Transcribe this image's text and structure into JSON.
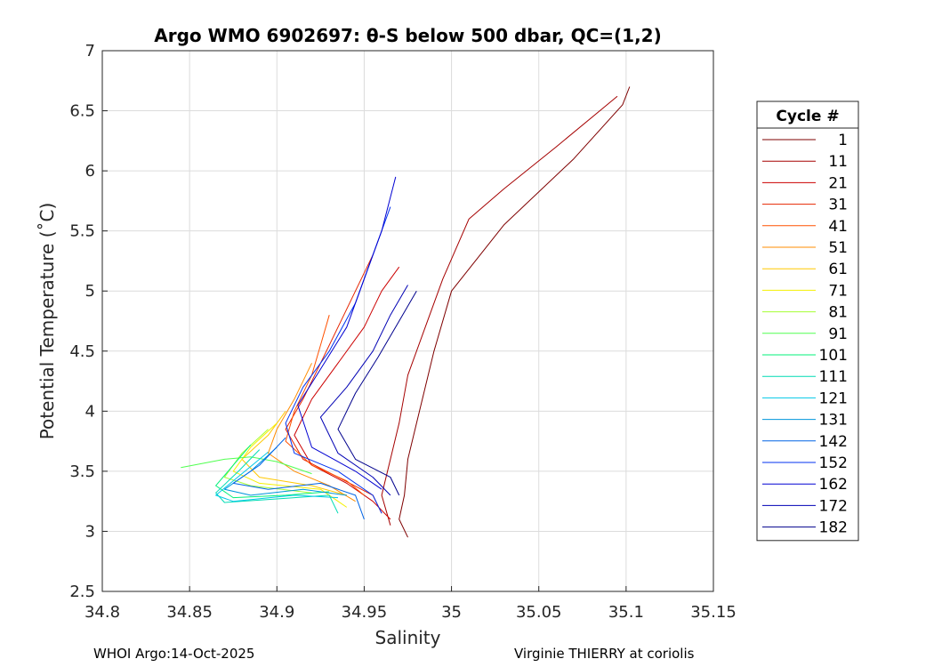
{
  "chart_data": {
    "type": "line",
    "title": "Argo WMO 6902697: θ-S below 500 dbar,  QC=(1,2)",
    "xlabel": "Salinity",
    "ylabel": "Potential Temperature (˚C)",
    "xlim": [
      34.8,
      35.15
    ],
    "ylim": [
      2.5,
      7
    ],
    "xticks": [
      "34.8",
      "34.85",
      "34.9",
      "34.95",
      "35",
      "35.05",
      "35.1",
      "35.15"
    ],
    "yticks": [
      "2.5",
      "3",
      "3.5",
      "4",
      "4.5",
      "5",
      "5.5",
      "6",
      "6.5",
      "7"
    ],
    "grid": true,
    "legend_title": "Cycle #",
    "legend_position": "right-outside",
    "series": [
      {
        "name": "1",
        "color": "#7f0000",
        "points": [
          [
            35.102,
            6.7
          ],
          [
            35.098,
            6.55
          ],
          [
            35.07,
            6.1
          ],
          [
            35.03,
            5.55
          ],
          [
            35.0,
            5.0
          ],
          [
            34.99,
            4.5
          ],
          [
            34.985,
            4.2
          ],
          [
            34.98,
            3.9
          ],
          [
            34.975,
            3.6
          ],
          [
            34.973,
            3.3
          ],
          [
            34.97,
            3.1
          ],
          [
            34.975,
            2.95
          ]
        ]
      },
      {
        "name": "11",
        "color": "#a50000",
        "points": [
          [
            35.095,
            6.62
          ],
          [
            35.06,
            6.2
          ],
          [
            35.03,
            5.85
          ],
          [
            35.01,
            5.6
          ],
          [
            34.995,
            5.1
          ],
          [
            34.985,
            4.7
          ],
          [
            34.975,
            4.3
          ],
          [
            34.97,
            3.9
          ],
          [
            34.965,
            3.6
          ],
          [
            34.96,
            3.3
          ],
          [
            34.965,
            3.05
          ]
        ]
      },
      {
        "name": "21",
        "color": "#cc0000",
        "points": [
          [
            34.97,
            5.2
          ],
          [
            34.96,
            5.0
          ],
          [
            34.95,
            4.7
          ],
          [
            34.935,
            4.4
          ],
          [
            34.92,
            4.1
          ],
          [
            34.91,
            3.8
          ],
          [
            34.92,
            3.55
          ],
          [
            34.94,
            3.4
          ],
          [
            34.955,
            3.25
          ],
          [
            34.965,
            3.1
          ]
        ]
      },
      {
        "name": "31",
        "color": "#e62400",
        "points": [
          [
            34.955,
            5.3
          ],
          [
            34.945,
            5.0
          ],
          [
            34.935,
            4.7
          ],
          [
            34.925,
            4.4
          ],
          [
            34.915,
            4.1
          ],
          [
            34.905,
            3.85
          ],
          [
            34.915,
            3.6
          ],
          [
            34.935,
            3.45
          ],
          [
            34.955,
            3.3
          ],
          [
            34.96,
            3.15
          ]
        ]
      },
      {
        "name": "41",
        "color": "#ff5000",
        "points": [
          [
            34.93,
            4.8
          ],
          [
            34.925,
            4.55
          ],
          [
            34.92,
            4.3
          ],
          [
            34.91,
            4.0
          ],
          [
            34.905,
            3.75
          ],
          [
            34.92,
            3.55
          ],
          [
            34.94,
            3.42
          ],
          [
            34.95,
            3.3
          ]
        ]
      },
      {
        "name": "51",
        "color": "#ff8c00",
        "points": [
          [
            34.92,
            4.4
          ],
          [
            34.91,
            4.1
          ],
          [
            34.9,
            3.85
          ],
          [
            34.895,
            3.65
          ],
          [
            34.91,
            3.5
          ],
          [
            34.93,
            3.38
          ],
          [
            34.945,
            3.25
          ]
        ]
      },
      {
        "name": "61",
        "color": "#ffc800",
        "points": [
          [
            34.905,
            4.0
          ],
          [
            34.895,
            3.8
          ],
          [
            34.88,
            3.6
          ],
          [
            34.89,
            3.45
          ],
          [
            34.92,
            3.38
          ],
          [
            34.94,
            3.3
          ]
        ]
      },
      {
        "name": "71",
        "color": "#f5f000",
        "points": [
          [
            34.9,
            3.9
          ],
          [
            34.885,
            3.7
          ],
          [
            34.875,
            3.5
          ],
          [
            34.89,
            3.4
          ],
          [
            34.925,
            3.35
          ],
          [
            34.94,
            3.2
          ]
        ]
      },
      {
        "name": "81",
        "color": "#a5ff32",
        "points": [
          [
            34.895,
            3.85
          ],
          [
            34.88,
            3.65
          ],
          [
            34.87,
            3.45
          ],
          [
            34.885,
            3.38
          ],
          [
            34.92,
            3.32
          ]
        ]
      },
      {
        "name": "91",
        "color": "#50ff50",
        "points": [
          [
            34.845,
            3.53
          ],
          [
            34.87,
            3.6
          ],
          [
            34.885,
            3.62
          ],
          [
            34.9,
            3.58
          ],
          [
            34.92,
            3.48
          ]
        ]
      },
      {
        "name": "101",
        "color": "#00f078",
        "points": [
          [
            34.885,
            3.72
          ],
          [
            34.875,
            3.55
          ],
          [
            34.865,
            3.38
          ],
          [
            34.875,
            3.28
          ],
          [
            34.905,
            3.3
          ],
          [
            34.93,
            3.33
          ]
        ]
      },
      {
        "name": "111",
        "color": "#00dcb4",
        "points": [
          [
            34.89,
            3.68
          ],
          [
            34.878,
            3.5
          ],
          [
            34.865,
            3.32
          ],
          [
            34.87,
            3.24
          ],
          [
            34.9,
            3.27
          ],
          [
            34.93,
            3.3
          ],
          [
            34.935,
            3.15
          ]
        ]
      },
      {
        "name": "121",
        "color": "#00c8e6",
        "points": [
          [
            34.895,
            3.66
          ],
          [
            34.88,
            3.48
          ],
          [
            34.865,
            3.3
          ],
          [
            34.875,
            3.25
          ],
          [
            34.91,
            3.3
          ],
          [
            34.935,
            3.28
          ]
        ]
      },
      {
        "name": "131",
        "color": "#0096dc",
        "points": [
          [
            34.9,
            3.7
          ],
          [
            34.885,
            3.5
          ],
          [
            34.87,
            3.35
          ],
          [
            34.885,
            3.3
          ],
          [
            34.915,
            3.35
          ],
          [
            34.94,
            3.3
          ]
        ]
      },
      {
        "name": "142",
        "color": "#0064e6",
        "points": [
          [
            34.905,
            3.78
          ],
          [
            34.89,
            3.55
          ],
          [
            34.875,
            3.4
          ],
          [
            34.895,
            3.35
          ],
          [
            34.925,
            3.4
          ],
          [
            34.945,
            3.3
          ],
          [
            34.95,
            3.1
          ]
        ]
      },
      {
        "name": "152",
        "color": "#0032f0",
        "points": [
          [
            34.965,
            5.7
          ],
          [
            34.955,
            5.3
          ],
          [
            34.945,
            4.9
          ],
          [
            34.93,
            4.5
          ],
          [
            34.915,
            4.2
          ],
          [
            34.905,
            3.9
          ],
          [
            34.91,
            3.65
          ],
          [
            34.935,
            3.5
          ],
          [
            34.955,
            3.3
          ],
          [
            34.96,
            3.15
          ]
        ]
      },
      {
        "name": "162",
        "color": "#0000d2",
        "points": [
          [
            34.968,
            5.95
          ],
          [
            34.96,
            5.5
          ],
          [
            34.95,
            5.1
          ],
          [
            34.94,
            4.7
          ],
          [
            34.925,
            4.35
          ],
          [
            34.912,
            4.05
          ],
          [
            34.92,
            3.7
          ],
          [
            34.945,
            3.5
          ],
          [
            34.96,
            3.35
          ]
        ]
      },
      {
        "name": "172",
        "color": "#0000b4",
        "points": [
          [
            34.975,
            5.05
          ],
          [
            34.965,
            4.8
          ],
          [
            34.955,
            4.5
          ],
          [
            34.94,
            4.2
          ],
          [
            34.925,
            3.95
          ],
          [
            34.935,
            3.65
          ],
          [
            34.955,
            3.45
          ],
          [
            34.965,
            3.3
          ]
        ]
      },
      {
        "name": "182",
        "color": "#00008c",
        "points": [
          [
            34.98,
            5.0
          ],
          [
            34.97,
            4.75
          ],
          [
            34.958,
            4.45
          ],
          [
            34.945,
            4.15
          ],
          [
            34.935,
            3.85
          ],
          [
            34.945,
            3.6
          ],
          [
            34.965,
            3.45
          ],
          [
            34.97,
            3.3
          ]
        ]
      }
    ]
  },
  "footer": {
    "left": "WHOI Argo:14-Oct-2025",
    "right": "Virginie THIERRY at coriolis"
  }
}
